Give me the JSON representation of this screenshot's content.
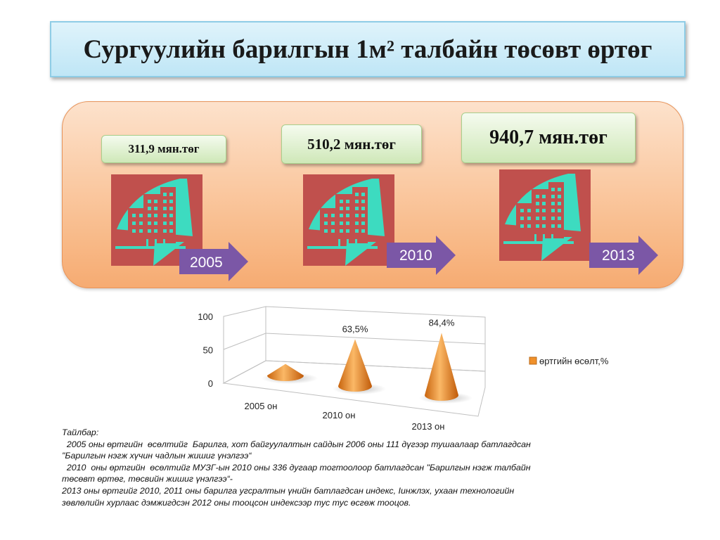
{
  "title": "Сургуулийн барилгын 1м² талбайн төсөвт өртөг",
  "costs": [
    {
      "year": "2005",
      "price": "311,9 мян.төг"
    },
    {
      "year": "2010",
      "price": "510,2 мян.төг"
    },
    {
      "year": "2013",
      "price": "940,7 мян.төг"
    }
  ],
  "chart_data": {
    "type": "bar",
    "style": "3d-cone",
    "categories": [
      "2005 он",
      "2010 он",
      "2013 он"
    ],
    "series": [
      {
        "name": "өртгийн өсөлт,%",
        "values": [
          12,
          63.5,
          84.4
        ],
        "data_labels": [
          "",
          "63,5%",
          "84,4%"
        ],
        "color": "#f0902a"
      }
    ],
    "yticks": [
      "0",
      "50",
      "100"
    ],
    "ylim": [
      0,
      100
    ],
    "legend_position": "right"
  },
  "note": {
    "heading": "Тайлбар:",
    "lines": [
      "  2005 оны өртгийн  өсөлтийг  Барилга, хот байгуулалтын сайдын 2006 оны 111 дүгээр тушаалаар батлагдсан",
      "\"Барилгын нэгж хүчин чадлын жишиг үнэлгээ“",
      "  2010  оны өртгийн  өсөлтийг МУЗГ-ын 2010 оны 336 дугаар тогтоолоор батлагдсан \"Барилгын нэгж талбайн",
      "төсөвт өртөг, төсвийн жишиг үнэлгээ“-",
      "2013 оны өртгийг 2010, 2011 оны барилга угсралтын үнийн батлагдсан индекс, Іинжлэх, ухаан технологийн",
      "зөвлөлийн хурлаас дэмжигдсэн 2012 оны  тооцсон индексээр тус тус өсгөж  тооцов."
    ]
  },
  "colors": {
    "icon_bg": "#c0504d",
    "icon_fg": "#3ddbc0",
    "arrow": "#7b57a6",
    "band": "#f8b987",
    "cone": "#f0902a"
  }
}
